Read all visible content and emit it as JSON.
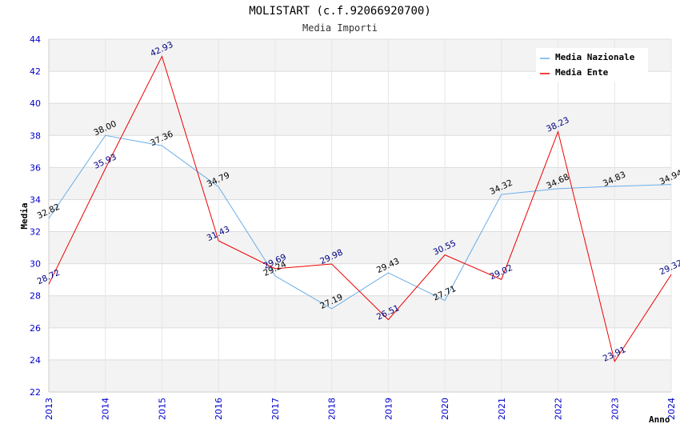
{
  "chart_data": {
    "type": "line",
    "title": "MOLISTART (c.f.92066920700)",
    "subtitle": "Media Importi",
    "xlabel": "Anno",
    "ylabel": "Media",
    "ylim": [
      22,
      44
    ],
    "yticks": [
      22,
      24,
      26,
      28,
      30,
      32,
      34,
      36,
      38,
      40,
      42,
      44
    ],
    "categories": [
      "2013",
      "2014",
      "2015",
      "2016",
      "2017",
      "2018",
      "2019",
      "2020",
      "2021",
      "2022",
      "2023",
      "2024"
    ],
    "legend_position": "top-right",
    "series": [
      {
        "name": "Media Nazionale",
        "color": "#6aaee8",
        "label_color": "#000000",
        "values": [
          32.82,
          38.0,
          37.36,
          34.79,
          29.24,
          27.19,
          29.43,
          27.71,
          34.32,
          34.68,
          34.83,
          34.94
        ],
        "labels": [
          "32.82",
          "38.00",
          "37.36",
          "34.79",
          "29.24",
          "27.19",
          "29.43",
          "27.71",
          "34.32",
          "34.68",
          "34.83",
          "34.94"
        ]
      },
      {
        "name": "Media Ente",
        "color": "#ee0000",
        "label_color": "#000080",
        "values": [
          28.72,
          35.93,
          42.93,
          31.43,
          29.69,
          29.98,
          26.51,
          30.55,
          29.02,
          38.23,
          23.91,
          29.32
        ],
        "labels": [
          "28.72",
          "35.93",
          "42.93",
          "31.43",
          "29.69",
          "29.98",
          "26.51",
          "30.55",
          "29.02",
          "38.23",
          "23.91",
          "29.32"
        ]
      }
    ]
  }
}
